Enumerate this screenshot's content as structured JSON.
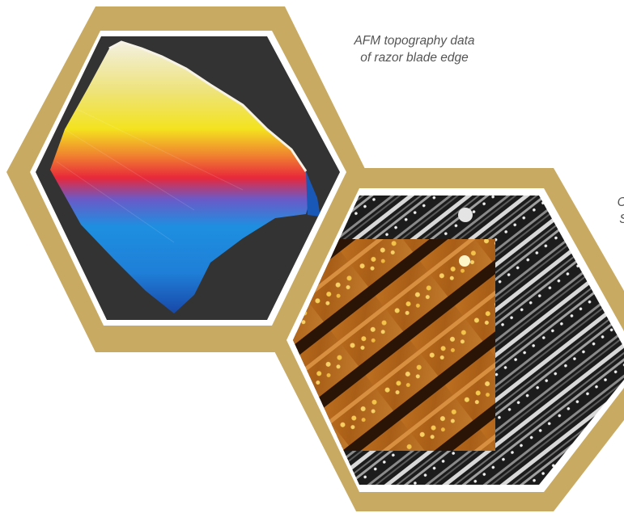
{
  "captions": {
    "afm_line1": "AFM topography data",
    "afm_line2": "of razor blade edge",
    "cut_line1": "Corre",
    "cut_line2": "SEM"
  },
  "colors": {
    "frame_gold": "#c9aa62",
    "frame_white": "#ffffff",
    "afm_background": "#333333",
    "sem_background": "#1d1d1d",
    "overlay_orange": "#b5671c"
  }
}
